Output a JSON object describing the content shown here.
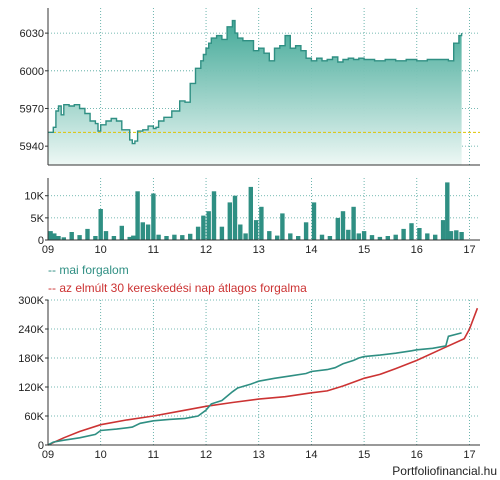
{
  "colors": {
    "price_line": "#2f8f83",
    "price_fill_top": "#3aa593",
    "price_fill_bottom": "#eef8f5",
    "reference_line": "#e0c400",
    "volume_bar": "#2f8f83",
    "today_line": "#2f8f83",
    "avg_line": "#cc3333",
    "grid": "#4aa39a",
    "axis": "#333333"
  },
  "legend": {
    "today": "-- mai forgalom",
    "avg": "-- az elmúlt 30 kereskedési nap átlagos forgalma"
  },
  "footer": {
    "source": "Portfoliofinancial.hu"
  },
  "chart_data": [
    {
      "type": "area",
      "role": "price",
      "ylim": [
        5925,
        6050
      ],
      "yticks": [
        {
          "value": 5940,
          "label": "5940"
        },
        {
          "value": 5970,
          "label": "5970"
        },
        {
          "value": 6000,
          "label": "6000"
        },
        {
          "value": 6030,
          "label": "6030"
        }
      ],
      "xlim": [
        9,
        17.2
      ],
      "reference_value": 5951,
      "x": [
        9.0,
        9.1,
        9.15,
        9.2,
        9.25,
        9.3,
        9.4,
        9.5,
        9.6,
        9.7,
        9.8,
        9.9,
        9.95,
        10.0,
        10.1,
        10.2,
        10.3,
        10.4,
        10.55,
        10.6,
        10.65,
        10.7,
        10.8,
        10.9,
        11.0,
        11.05,
        11.1,
        11.2,
        11.35,
        11.5,
        11.6,
        11.7,
        11.8,
        11.9,
        11.95,
        12.0,
        12.05,
        12.1,
        12.2,
        12.3,
        12.4,
        12.5,
        12.55,
        12.6,
        12.7,
        12.8,
        12.9,
        13.0,
        13.1,
        13.2,
        13.3,
        13.4,
        13.5,
        13.6,
        13.7,
        13.8,
        13.9,
        14.0,
        14.1,
        14.2,
        14.3,
        14.4,
        14.5,
        14.6,
        14.7,
        14.8,
        14.9,
        15.0,
        15.2,
        15.4,
        15.6,
        15.8,
        16.0,
        16.2,
        16.4,
        16.6,
        16.7,
        16.8,
        16.85
      ],
      "y": [
        5951,
        5955,
        5968,
        5972,
        5965,
        5973,
        5972,
        5973,
        5970,
        5966,
        5960,
        5958,
        5952,
        5957,
        5960,
        5962,
        5960,
        5953,
        5945,
        5942,
        5944,
        5952,
        5953,
        5956,
        5954,
        5955,
        5960,
        5963,
        5968,
        5976,
        5975,
        5990,
        6002,
        6008,
        6013,
        6018,
        6022,
        6026,
        6028,
        6025,
        6035,
        6040,
        6030,
        6026,
        6024,
        6024,
        6016,
        6018,
        6014,
        6008,
        6018,
        6020,
        6028,
        6018,
        6020,
        6016,
        6010,
        6008,
        6010,
        6008,
        6009,
        6011,
        6007,
        6009,
        6010,
        6009,
        6010,
        6009,
        6008,
        6009,
        6008,
        6009,
        6008,
        6009,
        6009,
        6008,
        6022,
        6028,
        6030
      ]
    },
    {
      "type": "bar",
      "role": "volume",
      "ylim": [
        0,
        14000
      ],
      "yticks": [
        {
          "value": 0,
          "label": "0"
        },
        {
          "value": 5000,
          "label": "5K"
        },
        {
          "value": 10000,
          "label": "10K"
        }
      ],
      "xticks": [
        {
          "value": 9,
          "label": "09"
        },
        {
          "value": 10,
          "label": "10"
        },
        {
          "value": 11,
          "label": "11"
        },
        {
          "value": 12,
          "label": "12"
        },
        {
          "value": 13,
          "label": "13"
        },
        {
          "value": 14,
          "label": "14"
        },
        {
          "value": 15,
          "label": "15"
        },
        {
          "value": 16,
          "label": "16"
        },
        {
          "value": 17,
          "label": "17"
        }
      ],
      "x": [
        9.05,
        9.12,
        9.2,
        9.3,
        9.45,
        9.6,
        9.75,
        9.9,
        10.0,
        10.1,
        10.25,
        10.4,
        10.55,
        10.62,
        10.7,
        10.8,
        10.9,
        11.0,
        11.1,
        11.25,
        11.4,
        11.55,
        11.7,
        11.85,
        11.95,
        12.05,
        12.15,
        12.3,
        12.45,
        12.55,
        12.65,
        12.75,
        12.85,
        12.95,
        13.05,
        13.2,
        13.35,
        13.45,
        13.6,
        13.75,
        13.9,
        14.05,
        14.2,
        14.35,
        14.5,
        14.6,
        14.7,
        14.8,
        14.9,
        15.0,
        15.15,
        15.3,
        15.45,
        15.6,
        15.75,
        15.9,
        16.05,
        16.2,
        16.35,
        16.5,
        16.58,
        16.65,
        16.75,
        16.85
      ],
      "values": [
        2000,
        1500,
        900,
        600,
        1800,
        1100,
        2500,
        900,
        7000,
        2000,
        900,
        3200,
        700,
        1000,
        11000,
        4000,
        3500,
        10500,
        1200,
        900,
        1200,
        1100,
        1400,
        3000,
        5500,
        6500,
        11000,
        3000,
        8500,
        10000,
        3500,
        1500,
        12000,
        4500,
        7500,
        2000,
        1000,
        6000,
        1500,
        900,
        4000,
        8500,
        1200,
        900,
        5000,
        6500,
        2300,
        7500,
        1500,
        2000,
        1100,
        700,
        900,
        1200,
        2500,
        3800,
        2700,
        1500,
        1200,
        4500,
        13000,
        2000,
        2200,
        1800
      ]
    },
    {
      "type": "line",
      "role": "cumulative",
      "ylim": [
        0,
        300000
      ],
      "yticks": [
        {
          "value": 0,
          "label": "0"
        },
        {
          "value": 60000,
          "label": "60K"
        },
        {
          "value": 120000,
          "label": "120K"
        },
        {
          "value": 180000,
          "label": "180K"
        },
        {
          "value": 240000,
          "label": "240K"
        },
        {
          "value": 300000,
          "label": "300K"
        }
      ],
      "xticks": [
        {
          "value": 9,
          "label": "09"
        },
        {
          "value": 10,
          "label": "10"
        },
        {
          "value": 11,
          "label": "11"
        },
        {
          "value": 12,
          "label": "12"
        },
        {
          "value": 13,
          "label": "13"
        },
        {
          "value": 14,
          "label": "14"
        },
        {
          "value": 15,
          "label": "15"
        },
        {
          "value": 16,
          "label": "16"
        },
        {
          "value": 17,
          "label": "17"
        }
      ],
      "series": [
        {
          "key": "today",
          "x": [
            9.0,
            9.1,
            9.3,
            9.6,
            9.9,
            10.0,
            10.3,
            10.6,
            10.75,
            11.0,
            11.3,
            11.6,
            11.85,
            12.0,
            12.1,
            12.3,
            12.5,
            12.6,
            12.85,
            13.0,
            13.3,
            13.6,
            13.9,
            14.0,
            14.3,
            14.45,
            14.6,
            14.8,
            14.9,
            15.0,
            15.3,
            15.6,
            15.9,
            16.0,
            16.3,
            16.55,
            16.6,
            16.85
          ],
          "y": [
            0,
            6000,
            10000,
            15000,
            22000,
            30000,
            33000,
            37000,
            45000,
            50000,
            53000,
            55000,
            60000,
            72000,
            85000,
            92000,
            110000,
            118000,
            126000,
            132000,
            138000,
            143000,
            148000,
            152000,
            156000,
            160000,
            168000,
            175000,
            180000,
            183000,
            186000,
            190000,
            195000,
            197000,
            200000,
            205000,
            225000,
            232000
          ]
        },
        {
          "key": "avg",
          "x": [
            9.0,
            9.3,
            9.6,
            10.0,
            10.5,
            11.0,
            11.5,
            12.0,
            12.5,
            13.0,
            13.5,
            14.0,
            14.3,
            14.6,
            15.0,
            15.3,
            15.6,
            16.0,
            16.5,
            16.9,
            17.0,
            17.15
          ],
          "y": [
            0,
            15000,
            28000,
            42000,
            52000,
            60000,
            70000,
            80000,
            88000,
            95000,
            100000,
            108000,
            112000,
            122000,
            138000,
            146000,
            158000,
            175000,
            200000,
            220000,
            240000,
            283000
          ]
        }
      ]
    }
  ]
}
